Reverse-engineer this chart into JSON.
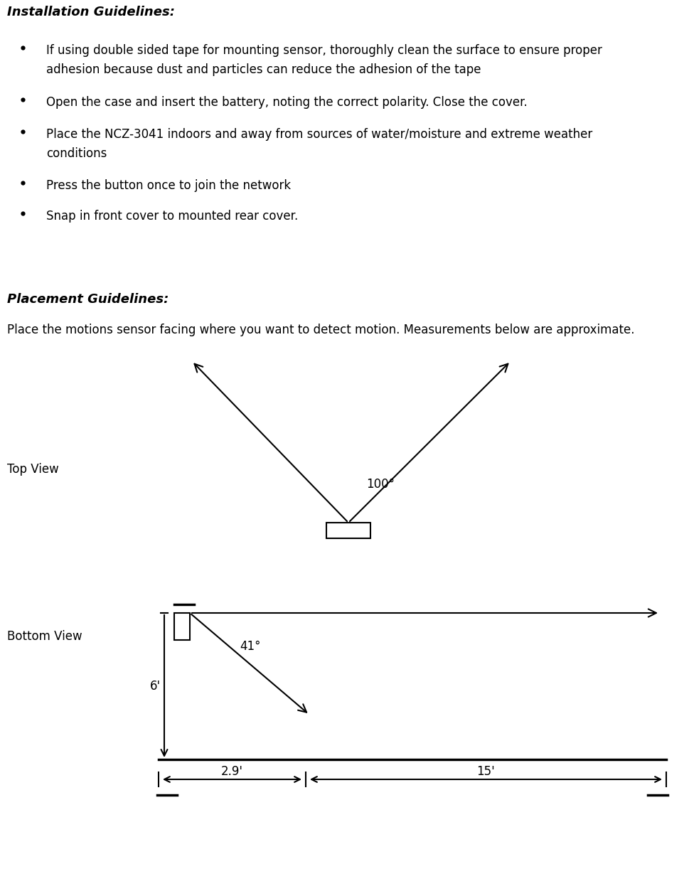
{
  "title_install": "Installation Guidelines:",
  "bullets": [
    "If using double sided tape for mounting sensor, thoroughly clean the surface to ensure proper\nadhesion because dust and particles can reduce the adhesion of the tape",
    "Open the case and insert the battery, noting the correct polarity. Close the cover.",
    "Place the NCZ-3041 indoors and away from sources of water/moisture and extreme weather\nconditions",
    "Press the button once to join the network",
    "Snap in front cover to mounted rear cover."
  ],
  "title_placement": "Placement Guidelines:",
  "placement_desc": "Place the motions sensor facing where you want to detect motion. Measurements below are approximate.",
  "top_view_label": "Top View",
  "bottom_view_label": "Bottom View",
  "angle_top": "100°",
  "angle_bottom": "41°",
  "dim_height": "6'",
  "dim_near": "2.9'",
  "dim_far": "15'",
  "bg_color": "#ffffff",
  "text_color": "#000000",
  "line_color": "#000000"
}
